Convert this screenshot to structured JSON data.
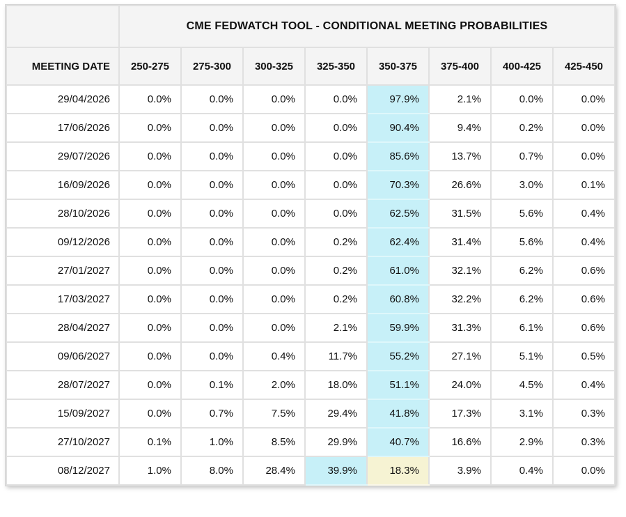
{
  "chart_data": {
    "type": "table",
    "title": "CME FEDWATCH TOOL - CONDITIONAL MEETING PROBABILITIES",
    "date_column_header": "MEETING DATE",
    "rate_column_headers": [
      "250-275",
      "275-300",
      "300-325",
      "325-350",
      "350-375",
      "375-400",
      "400-425",
      "425-450"
    ],
    "rows": [
      {
        "date": "29/04/2026",
        "values": [
          "0.0%",
          "0.0%",
          "0.0%",
          "0.0%",
          "97.9%",
          "2.1%",
          "0.0%",
          "0.0%"
        ],
        "highlights": {
          "cyan": 4
        }
      },
      {
        "date": "17/06/2026",
        "values": [
          "0.0%",
          "0.0%",
          "0.0%",
          "0.0%",
          "90.4%",
          "9.4%",
          "0.2%",
          "0.0%"
        ],
        "highlights": {
          "cyan": 4
        }
      },
      {
        "date": "29/07/2026",
        "values": [
          "0.0%",
          "0.0%",
          "0.0%",
          "0.0%",
          "85.6%",
          "13.7%",
          "0.7%",
          "0.0%"
        ],
        "highlights": {
          "cyan": 4
        }
      },
      {
        "date": "16/09/2026",
        "values": [
          "0.0%",
          "0.0%",
          "0.0%",
          "0.0%",
          "70.3%",
          "26.6%",
          "3.0%",
          "0.1%"
        ],
        "highlights": {
          "cyan": 4
        }
      },
      {
        "date": "28/10/2026",
        "values": [
          "0.0%",
          "0.0%",
          "0.0%",
          "0.0%",
          "62.5%",
          "31.5%",
          "5.6%",
          "0.4%"
        ],
        "highlights": {
          "cyan": 4
        }
      },
      {
        "date": "09/12/2026",
        "values": [
          "0.0%",
          "0.0%",
          "0.0%",
          "0.2%",
          "62.4%",
          "31.4%",
          "5.6%",
          "0.4%"
        ],
        "highlights": {
          "cyan": 4
        }
      },
      {
        "date": "27/01/2027",
        "values": [
          "0.0%",
          "0.0%",
          "0.0%",
          "0.2%",
          "61.0%",
          "32.1%",
          "6.2%",
          "0.6%"
        ],
        "highlights": {
          "cyan": 4
        }
      },
      {
        "date": "17/03/2027",
        "values": [
          "0.0%",
          "0.0%",
          "0.0%",
          "0.2%",
          "60.8%",
          "32.2%",
          "6.2%",
          "0.6%"
        ],
        "highlights": {
          "cyan": 4
        }
      },
      {
        "date": "28/04/2027",
        "values": [
          "0.0%",
          "0.0%",
          "0.0%",
          "2.1%",
          "59.9%",
          "31.3%",
          "6.1%",
          "0.6%"
        ],
        "highlights": {
          "cyan": 4
        }
      },
      {
        "date": "09/06/2027",
        "values": [
          "0.0%",
          "0.0%",
          "0.4%",
          "11.7%",
          "55.2%",
          "27.1%",
          "5.1%",
          "0.5%"
        ],
        "highlights": {
          "cyan": 4
        }
      },
      {
        "date": "28/07/2027",
        "values": [
          "0.0%",
          "0.1%",
          "2.0%",
          "18.0%",
          "51.1%",
          "24.0%",
          "4.5%",
          "0.4%"
        ],
        "highlights": {
          "cyan": 4
        }
      },
      {
        "date": "15/09/2027",
        "values": [
          "0.0%",
          "0.7%",
          "7.5%",
          "29.4%",
          "41.8%",
          "17.3%",
          "3.1%",
          "0.3%"
        ],
        "highlights": {
          "cyan": 4
        }
      },
      {
        "date": "27/10/2027",
        "values": [
          "0.1%",
          "1.0%",
          "8.5%",
          "29.9%",
          "40.7%",
          "16.6%",
          "2.9%",
          "0.3%"
        ],
        "highlights": {
          "cyan": 4
        }
      },
      {
        "date": "08/12/2027",
        "values": [
          "1.0%",
          "8.0%",
          "28.4%",
          "39.9%",
          "18.3%",
          "3.9%",
          "0.4%",
          "0.0%"
        ],
        "highlights": {
          "cyan": 3,
          "yellow": 4
        }
      }
    ],
    "legend_position": "none",
    "grid": true
  },
  "colors": {
    "highlight_cyan": "#c7f0f8",
    "highlight_cyan_border": "#def7fb",
    "highlight_yellow": "#f6f3d3",
    "highlight_yellow_border": "#faf8e8",
    "header_bg": "#f4f4f4",
    "border_gray": "#e0e0e0",
    "text": "#101010"
  }
}
